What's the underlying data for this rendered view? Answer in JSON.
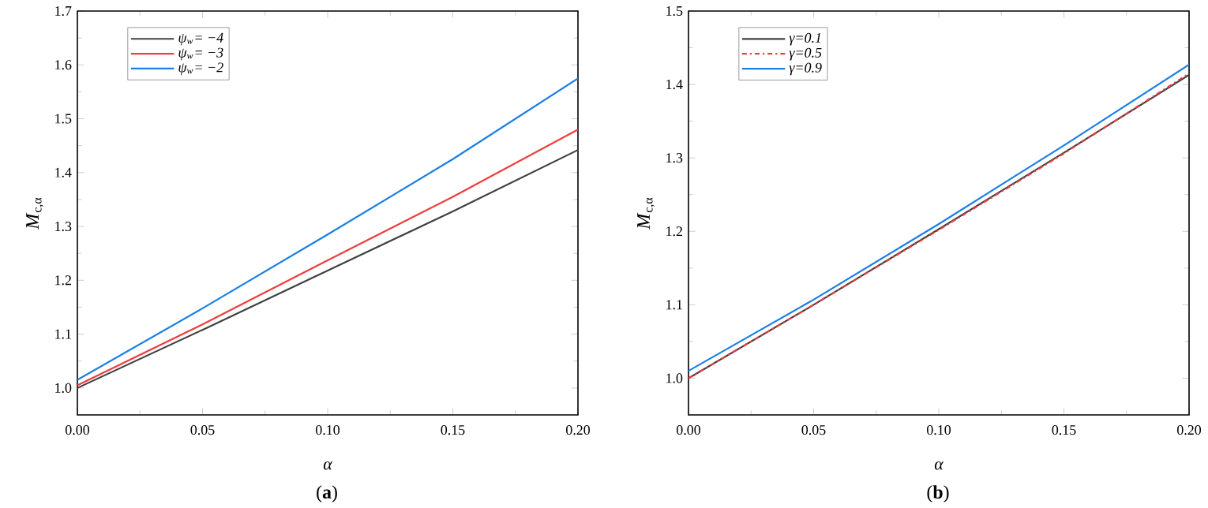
{
  "chart_data": [
    {
      "type": "line",
      "title": "(**a**)",
      "xlabel": "α",
      "ylabel": "*M*$_{c,α}$",
      "x": [
        0,
        0.05,
        0.1,
        0.15,
        0.2
      ],
      "xlim": [
        0,
        0.2
      ],
      "ylim": [
        0.95,
        1.7
      ],
      "xticks": [
        {
          "value": 0,
          "label": "0.00"
        },
        {
          "value": 0.05,
          "label": "0.05"
        },
        {
          "value": 0.1,
          "label": "0.10"
        },
        {
          "value": 0.15,
          "label": "0.15"
        },
        {
          "value": 0.2,
          "label": "0.20"
        }
      ],
      "yticks": [
        {
          "value": 1.0,
          "label": "1.0"
        },
        1.1,
        1.2,
        1.3,
        1.4,
        1.5,
        1.6,
        1.7
      ],
      "legend": "top left",
      "grid": false,
      "series": [
        {
          "name": "*ψ*$_{w}$= −4",
          "color": "#404040",
          "values": [
            1.0,
            1.108,
            1.218,
            1.328,
            1.442
          ]
        },
        {
          "name": "*ψ*$_{w}$= −3",
          "color": "#f03c3c",
          "values": [
            1.005,
            1.118,
            1.237,
            1.355,
            1.48
          ]
        },
        {
          "name": "*ψ*$_{w}$= −2",
          "color": "#1a7ee6",
          "values": [
            1.015,
            1.148,
            1.285,
            1.425,
            1.575
          ]
        }
      ]
    },
    {
      "type": "line",
      "title": "(**b**)",
      "xlabel": "α",
      "ylabel": "*M*$_{c,α}$",
      "x": [
        0,
        0.05,
        0.1,
        0.15,
        0.2
      ],
      "xlim": [
        0,
        0.2
      ],
      "ylim": [
        0.95,
        1.5
      ],
      "xticks": [
        {
          "value": 0,
          "label": "0.00"
        },
        {
          "value": 0.05,
          "label": "0.05"
        },
        {
          "value": 0.1,
          "label": "0.10"
        },
        {
          "value": 0.15,
          "label": "0.15"
        },
        {
          "value": 0.2,
          "label": "0.20"
        }
      ],
      "yticks": [
        {
          "value": 1.0,
          "label": "1.0"
        },
        1.1,
        1.2,
        1.3,
        1.4,
        1.5
      ],
      "legend": "top left",
      "grid": false,
      "series": [
        {
          "name": "γ=0.1",
          "color": "#404040",
          "values": [
            1.0,
            1.1,
            1.203,
            1.307,
            1.413
          ]
        },
        {
          "name": "γ=0.5",
          "color": "#f03c3c",
          "line_style": "dashdot",
          "values": [
            1.0,
            1.1,
            1.202,
            1.306,
            1.415
          ]
        },
        {
          "name": "γ=0.9",
          "color": "#1a7ee6",
          "values": [
            1.01,
            1.107,
            1.21,
            1.317,
            1.427
          ]
        }
      ]
    }
  ]
}
